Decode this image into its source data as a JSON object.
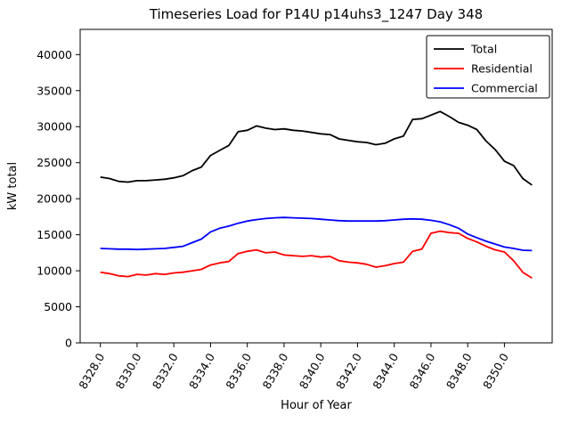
{
  "chart_data": {
    "type": "line",
    "title": "Timeseries Load for P14U p14uhs3_1247  Day 348",
    "xlabel": "Hour of Year",
    "ylabel": "kW total",
    "xlim": [
      8326.9,
      8352.6
    ],
    "ylim": [
      0,
      43500
    ],
    "xtick_labels": [
      "8328.0",
      "8330.0",
      "8332.0",
      "8334.0",
      "8336.0",
      "8338.0",
      "8340.0",
      "8342.0",
      "8344.0",
      "8346.0",
      "8348.0",
      "8350.0"
    ],
    "ytick_labels": [
      "0",
      "5000",
      "10000",
      "15000",
      "20000",
      "25000",
      "30000",
      "35000",
      "40000"
    ],
    "grid": false,
    "legend_position": "upper right",
    "x": [
      8328.0,
      8328.5,
      8329.0,
      8329.5,
      8330.0,
      8330.5,
      8331.0,
      8331.5,
      8332.0,
      8332.5,
      8333.0,
      8333.5,
      8334.0,
      8334.5,
      8335.0,
      8335.5,
      8336.0,
      8336.5,
      8337.0,
      8337.5,
      8338.0,
      8338.5,
      8339.0,
      8339.5,
      8340.0,
      8340.5,
      8341.0,
      8341.5,
      8342.0,
      8342.5,
      8343.0,
      8343.5,
      8344.0,
      8344.5,
      8345.0,
      8345.5,
      8346.0,
      8346.5,
      8347.0,
      8347.5,
      8348.0,
      8348.5,
      8349.0,
      8349.5,
      8350.0,
      8350.5,
      8351.0,
      8351.5
    ],
    "series": [
      {
        "name": "Total",
        "color": "#000000",
        "values": [
          23000,
          22800,
          22400,
          22300,
          22500,
          22500,
          22600,
          22700,
          22900,
          23200,
          23900,
          24400,
          26000,
          26700,
          27400,
          29300,
          29500,
          30100,
          29800,
          29600,
          29700,
          29500,
          29400,
          29200,
          29000,
          28900,
          28300,
          28100,
          27900,
          27800,
          27500,
          27700,
          28300,
          28700,
          31000,
          31100,
          31600,
          32100,
          31400,
          30600,
          30200,
          29600,
          28000,
          26800,
          25200,
          24600,
          22800,
          21900
        ]
      },
      {
        "name": "Residential",
        "color": "#ff0000",
        "values": [
          9800,
          9600,
          9300,
          9200,
          9500,
          9400,
          9600,
          9500,
          9700,
          9800,
          10000,
          10200,
          10800,
          11100,
          11300,
          12400,
          12700,
          12900,
          12500,
          12600,
          12200,
          12100,
          12000,
          12100,
          11900,
          12000,
          11400,
          11200,
          11100,
          10900,
          10500,
          10700,
          11000,
          11200,
          12700,
          13000,
          15200,
          15500,
          15300,
          15200,
          14500,
          14000,
          13400,
          12900,
          12600,
          11400,
          9800,
          9000
        ]
      },
      {
        "name": "Commercial",
        "color": "#0000ff",
        "values": [
          13100,
          13050,
          13000,
          13000,
          12950,
          13000,
          13050,
          13100,
          13250,
          13400,
          13900,
          14400,
          15400,
          15900,
          16200,
          16600,
          16900,
          17100,
          17250,
          17350,
          17400,
          17350,
          17300,
          17250,
          17150,
          17050,
          16950,
          16900,
          16900,
          16900,
          16900,
          16950,
          17050,
          17150,
          17200,
          17150,
          17000,
          16800,
          16400,
          15900,
          15100,
          14600,
          14100,
          13700,
          13300,
          13100,
          12850,
          12800
        ]
      }
    ]
  }
}
